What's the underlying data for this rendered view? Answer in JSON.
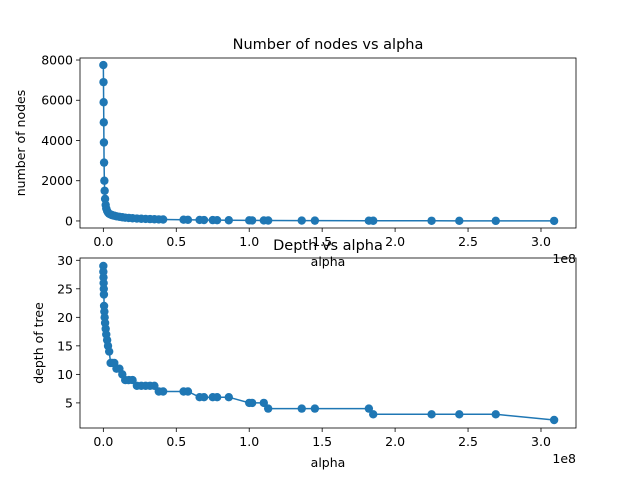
{
  "chart_data": [
    {
      "type": "line",
      "title": "Number of nodes vs alpha",
      "xlabel": "alpha",
      "ylabel": "number of nodes",
      "x_offset_label": "1e8",
      "x_scale": 100000000,
      "xlim": [
        -16000000,
        324000000
      ],
      "ylim": [
        -350,
        8100
      ],
      "xticks": [
        0,
        0.5,
        1.0,
        1.5,
        2.0,
        2.5,
        3.0
      ],
      "xtick_labels": [
        "0.0",
        "0.5",
        "1.0",
        "1.5",
        "2.0",
        "2.5",
        "3.0"
      ],
      "yticks": [
        0,
        2000,
        4000,
        6000,
        8000
      ],
      "ytick_labels": [
        "0",
        "2000",
        "4000",
        "6000",
        "8000"
      ],
      "grid": false,
      "legend": "none",
      "marker": "circle",
      "color": "#1f77b4",
      "x": [
        0,
        100000,
        200000,
        300000,
        400000,
        500000,
        700000,
        900000,
        1200000,
        1600000,
        2000000,
        2600000,
        3200000,
        4000000,
        5000000,
        6000000,
        7500000,
        9000000,
        11000000,
        13000000,
        15000000,
        17500000,
        20000000,
        23000000,
        26000000,
        29000000,
        32000000,
        35000000,
        38000000,
        41000000,
        55000000,
        58000000,
        66000000,
        69000000,
        75000000,
        78000000,
        86000000,
        100000000,
        102000000,
        110000000,
        113000000,
        136000000,
        145000000,
        182000000,
        185000000,
        225000000,
        244000000,
        269000000,
        309000000
      ],
      "y": [
        7750,
        6900,
        5900,
        4900,
        3900,
        2900,
        2000,
        1500,
        1100,
        800,
        620,
        500,
        420,
        360,
        320,
        290,
        260,
        230,
        205,
        185,
        165,
        150,
        135,
        120,
        110,
        100,
        92,
        85,
        78,
        72,
        62,
        57,
        50,
        46,
        42,
        39,
        35,
        30,
        28,
        25,
        23,
        19,
        17,
        13,
        11,
        9,
        7,
        5,
        3
      ]
    },
    {
      "type": "line",
      "title": "Depth vs alpha",
      "xlabel": "alpha",
      "ylabel": "depth of tree",
      "x_offset_label": "1e8",
      "x_scale": 100000000,
      "xlim": [
        -16000000,
        324000000
      ],
      "ylim": [
        0.6,
        30.4
      ],
      "xticks": [
        0,
        0.5,
        1.0,
        1.5,
        2.0,
        2.5,
        3.0
      ],
      "xtick_labels": [
        "0.0",
        "0.5",
        "1.0",
        "1.5",
        "2.0",
        "2.5",
        "3.0"
      ],
      "yticks": [
        5,
        10,
        15,
        20,
        25,
        30
      ],
      "ytick_labels": [
        "5",
        "10",
        "15",
        "20",
        "25",
        "30"
      ],
      "grid": false,
      "legend": "none",
      "marker": "circle",
      "color": "#1f77b4",
      "x": [
        0,
        0,
        100000,
        200000,
        300000,
        400000,
        500000,
        700000,
        900000,
        1200000,
        1600000,
        2000000,
        2600000,
        3200000,
        4000000,
        5000000,
        6000000,
        7500000,
        9000000,
        11000000,
        13000000,
        15000000,
        17500000,
        20000000,
        23000000,
        26000000,
        29000000,
        32000000,
        35000000,
        38000000,
        41000000,
        55000000,
        58000000,
        66000000,
        69000000,
        75000000,
        78000000,
        86000000,
        100000000,
        102000000,
        110000000,
        113000000,
        136000000,
        145000000,
        182000000,
        185000000,
        225000000,
        244000000,
        269000000,
        309000000
      ],
      "y": [
        29,
        28,
        27,
        26,
        25,
        24,
        22,
        21,
        20,
        19,
        18,
        17,
        16,
        15,
        14,
        12,
        12,
        12,
        11,
        11,
        10,
        9,
        9,
        9,
        8,
        8,
        8,
        8,
        8,
        7,
        7,
        7,
        7,
        6,
        6,
        6,
        6,
        6,
        5,
        5,
        5,
        4,
        4,
        4,
        4,
        3,
        3,
        3,
        3,
        2
      ]
    }
  ]
}
